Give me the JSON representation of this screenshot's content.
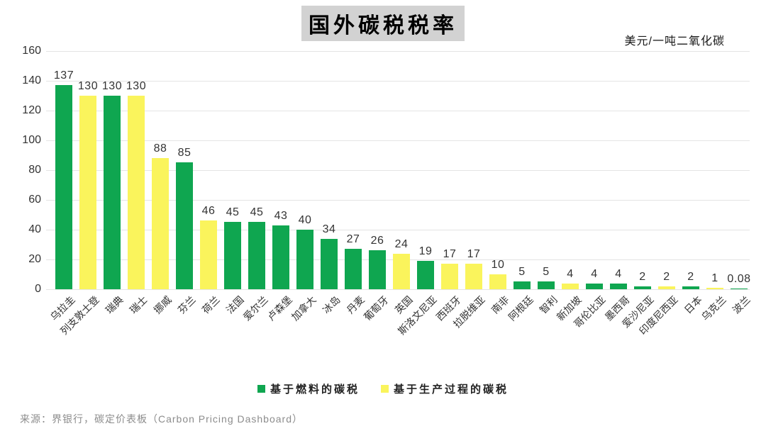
{
  "page": {
    "title": "国外碳税税率",
    "unit_label": "美元/一吨二氧化碳",
    "source": "来源：界银行，碳定价表板（Carbon Pricing Dashboard）"
  },
  "colors": {
    "fuel": "#0FA650",
    "process": "#FAF45C",
    "grid": "#e4e4e4",
    "title_bg": "#d2d2d2",
    "text": "#333333",
    "source_text": "#8c8c8c"
  },
  "chart_data": {
    "type": "bar",
    "title": "国外碳税税率",
    "ylabel": "美元/一吨二氧化碳",
    "xlabel": "",
    "ylim": [
      0,
      160
    ],
    "yticks": [
      0,
      20,
      40,
      60,
      80,
      100,
      120,
      140,
      160
    ],
    "grid": true,
    "legend_position": "bottom-center",
    "legend": [
      {
        "name": "基于燃料的碳税",
        "series": "fuel"
      },
      {
        "name": "基于生产过程的碳税",
        "series": "process"
      }
    ],
    "categories": [
      "乌拉圭",
      "列支敦士登",
      "瑞典",
      "瑞士",
      "挪威",
      "芬兰",
      "荷兰",
      "法国",
      "爱尔兰",
      "卢森堡",
      "加拿大",
      "冰岛",
      "丹麦",
      "葡萄牙",
      "英国",
      "斯洛文尼亚",
      "西班牙",
      "拉脱维亚",
      "南非",
      "阿根廷",
      "智利",
      "新加坡",
      "哥伦比亚",
      "墨西哥",
      "爱沙尼亚",
      "印度尼西亚",
      "日本",
      "乌克兰",
      "波兰"
    ],
    "values": [
      137,
      130,
      130,
      130,
      88,
      85,
      46,
      45,
      45,
      43,
      40,
      34,
      27,
      26,
      24,
      19,
      17,
      17,
      10,
      5,
      5,
      4,
      4,
      4,
      2,
      2,
      2,
      1,
      0.08
    ],
    "value_labels": [
      "137",
      "130",
      "130",
      "130",
      "88",
      "85",
      "46",
      "45",
      "45",
      "43",
      "40",
      "34",
      "27",
      "26",
      "24",
      "19",
      "17",
      "17",
      "10",
      "5",
      "5",
      "4",
      "4",
      "4",
      "2",
      "2",
      "2",
      "1",
      "0.08"
    ],
    "series_of_bar": [
      "fuel",
      "process",
      "fuel",
      "process",
      "process",
      "fuel",
      "process",
      "fuel",
      "fuel",
      "fuel",
      "fuel",
      "fuel",
      "fuel",
      "fuel",
      "process",
      "fuel",
      "process",
      "process",
      "process",
      "fuel",
      "fuel",
      "process",
      "fuel",
      "fuel",
      "fuel",
      "process",
      "fuel",
      "process",
      "fuel"
    ]
  }
}
